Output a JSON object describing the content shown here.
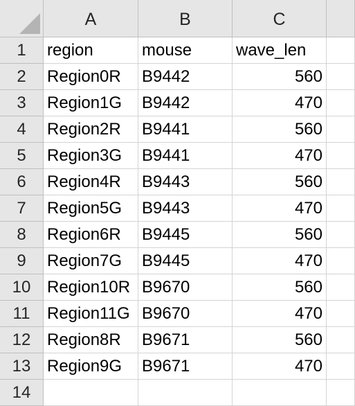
{
  "columns": [
    "A",
    "B",
    "C"
  ],
  "rows": [
    {
      "num": "1",
      "cells": [
        "region",
        "mouse",
        "wave_len"
      ]
    },
    {
      "num": "2",
      "cells": [
        "Region0R",
        "B9442",
        "560"
      ]
    },
    {
      "num": "3",
      "cells": [
        "Region1G",
        "B9442",
        "470"
      ]
    },
    {
      "num": "4",
      "cells": [
        "Region2R",
        "B9441",
        "560"
      ]
    },
    {
      "num": "5",
      "cells": [
        "Region3G",
        "B9441",
        "470"
      ]
    },
    {
      "num": "6",
      "cells": [
        "Region4R",
        "B9443",
        "560"
      ]
    },
    {
      "num": "7",
      "cells": [
        "Region5G",
        "B9443",
        "470"
      ]
    },
    {
      "num": "8",
      "cells": [
        "Region6R",
        "B9445",
        "560"
      ]
    },
    {
      "num": "9",
      "cells": [
        "Region7G",
        "B9445",
        "470"
      ]
    },
    {
      "num": "10",
      "cells": [
        "Region10R",
        "B9670",
        "560"
      ]
    },
    {
      "num": "11",
      "cells": [
        "Region11G",
        "B9670",
        "470"
      ]
    },
    {
      "num": "12",
      "cells": [
        "Region8R",
        "B9671",
        "560"
      ]
    },
    {
      "num": "13",
      "cells": [
        "Region9G",
        "B9671",
        "470"
      ]
    },
    {
      "num": "14",
      "cells": [
        "",
        "",
        ""
      ]
    }
  ],
  "colors": {
    "header_bg": "#e6e6e6",
    "grid_line": "#d4d4d4",
    "header_line": "#bfbfbf"
  }
}
